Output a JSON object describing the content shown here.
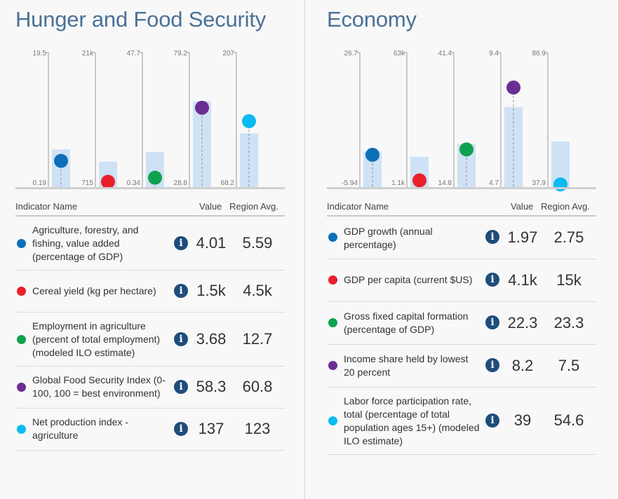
{
  "panels": [
    {
      "title": "Hunger and Food Security",
      "table_headers": {
        "name": "Indicator Name",
        "value": "Value",
        "avg": "Region Avg."
      },
      "info_symbol": "i",
      "indicators": [
        {
          "name": "Agriculture, forestry, and fishing, value added (percentage of GDP)",
          "value": "4.01",
          "avg": "5.59",
          "color": "#0d6eb8",
          "scale_max": "19.5",
          "scale_min": "0.19",
          "value_frac": 0.195,
          "avg_frac": 0.28
        },
        {
          "name": "Cereal yield (kg per hectare)",
          "value": "1.5k",
          "avg": "4.5k",
          "color": "#e8202a",
          "scale_max": "21k",
          "scale_min": "715",
          "value_frac": 0.04,
          "avg_frac": 0.19
        },
        {
          "name": "Employment in agriculture (percent of total employment) (modeled ILO estimate)",
          "value": "3.68",
          "avg": "12.7",
          "color": "#0fa14f",
          "scale_max": "47.7",
          "scale_min": "0.34",
          "value_frac": 0.07,
          "avg_frac": 0.26
        },
        {
          "name": "Global Food Security Index (0-100, 100 = best environment)",
          "value": "58.3",
          "avg": "60.8",
          "color": "#6a2e93",
          "scale_max": "79.2",
          "scale_min": "28.8",
          "value_frac": 0.59,
          "avg_frac": 0.64
        },
        {
          "name": "Net production index - agriculture",
          "value": "137",
          "avg": "123",
          "color": "#0bbbf0",
          "scale_max": "207",
          "scale_min": "68.2",
          "value_frac": 0.49,
          "avg_frac": 0.4
        }
      ]
    },
    {
      "title": "Economy",
      "table_headers": {
        "name": "Indicator Name",
        "value": "Value",
        "avg": "Region Avg."
      },
      "info_symbol": "i",
      "indicators": [
        {
          "name": "GDP growth (annual percentage)",
          "value": "1.97",
          "avg": "2.75",
          "color": "#0d6eb8",
          "scale_max": "26.7",
          "scale_min": "-5.94",
          "value_frac": 0.24,
          "avg_frac": 0.265
        },
        {
          "name": "GDP per capita (current $US)",
          "value": "4.1k",
          "avg": "15k",
          "color": "#e8202a",
          "scale_max": "63k",
          "scale_min": "1.1k",
          "value_frac": 0.05,
          "avg_frac": 0.225
        },
        {
          "name": "Gross fixed capital formation (percentage of GDP)",
          "value": "22.3",
          "avg": "23.3",
          "color": "#0fa14f",
          "scale_max": "41.4",
          "scale_min": "14.8",
          "value_frac": 0.28,
          "avg_frac": 0.32
        },
        {
          "name": "Income share held by lowest 20 percent",
          "value": "8.2",
          "avg": "7.5",
          "color": "#6a2e93",
          "scale_max": "9.4",
          "scale_min": "4.7",
          "value_frac": 0.74,
          "avg_frac": 0.595
        },
        {
          "name": "Labor force participation rate, total (percentage of total population ages 15+) (modeled ILO estimate)",
          "value": "39",
          "avg": "54.6",
          "color": "#0bbbf0",
          "scale_max": "86.9",
          "scale_min": "37.9",
          "value_frac": 0.02,
          "avg_frac": 0.34
        }
      ]
    }
  ]
}
